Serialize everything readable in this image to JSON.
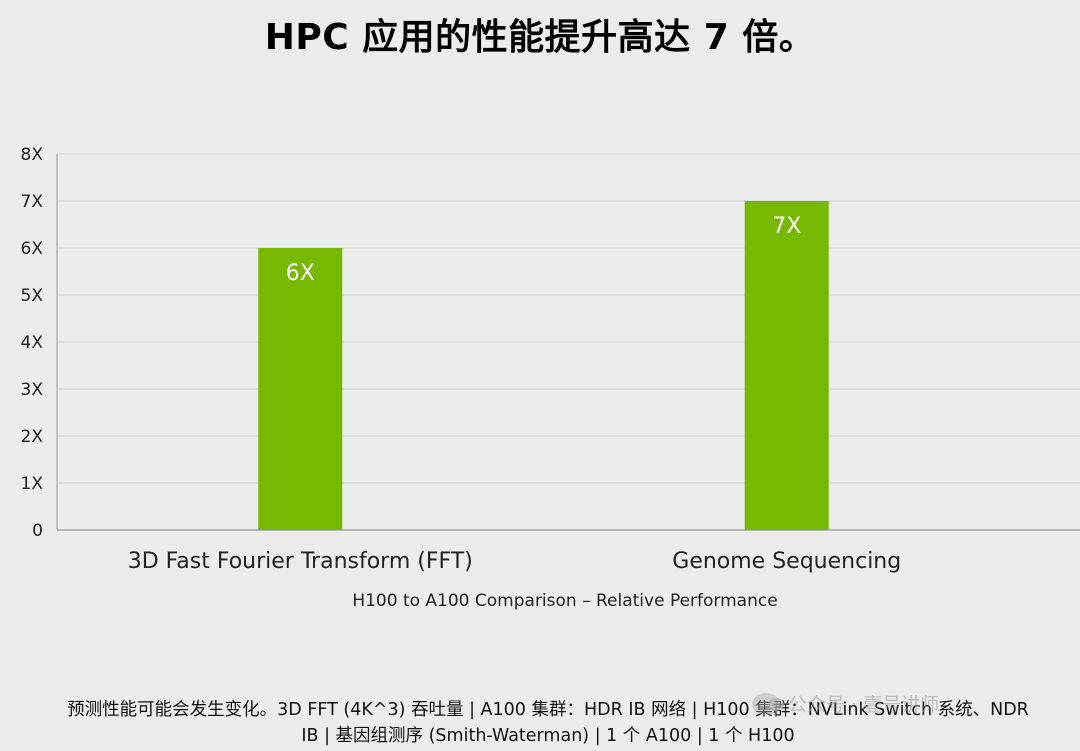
{
  "title": "HPC 应用的性能提升高达 7 倍。",
  "caption": "H100 to A100 Comparison – Relative Performance",
  "footnote": {
    "line1": "预测性能可能会发生变化。3D FFT (4K^3) 吞吐量 | A100 集群：HDR IB 网络 | H100 集群：NVLink Switch 系统、NDR",
    "line2": "IB | 基因组测序 (Smith-Waterman) | 1 个 A100 | 1 个 H100"
  },
  "watermark": {
    "text": "公众号 · 壹号讲师",
    "icon": "wechat-icon"
  },
  "colors": {
    "bar": "#76b900",
    "grid": "#d2d2d2",
    "axis": "#999999",
    "background": "#ececec"
  },
  "chart_data": {
    "type": "bar",
    "categories": [
      "3D Fast Fourier Transform (FFT)",
      "Genome Sequencing"
    ],
    "values": [
      6,
      7
    ],
    "data_labels": [
      "6X",
      "7X"
    ],
    "ylim": [
      0,
      8
    ],
    "yticks": [
      {
        "value": 0,
        "label": "0"
      },
      {
        "value": 1,
        "label": "1X"
      },
      {
        "value": 2,
        "label": "2X"
      },
      {
        "value": 3,
        "label": "3X"
      },
      {
        "value": 4,
        "label": "4X"
      },
      {
        "value": 5,
        "label": "5X"
      },
      {
        "value": 6,
        "label": "6X"
      },
      {
        "value": 7,
        "label": "7X"
      },
      {
        "value": 8,
        "label": "8X"
      }
    ],
    "grid": true,
    "legend": "none"
  }
}
